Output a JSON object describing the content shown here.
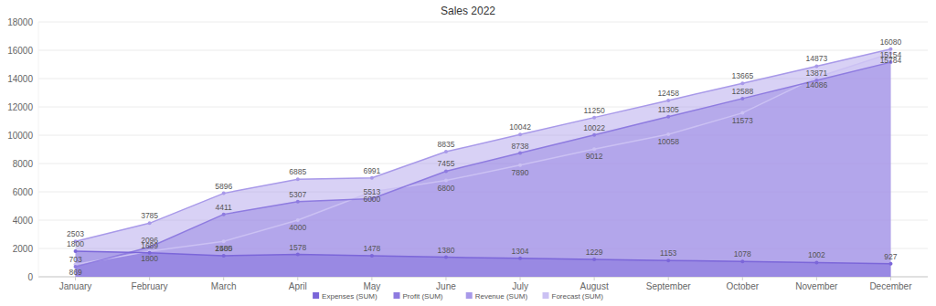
{
  "chart_data": {
    "type": "area",
    "title": "Sales 2022",
    "categories": [
      "January",
      "February",
      "March",
      "April",
      "May",
      "June",
      "July",
      "August",
      "September",
      "October",
      "November",
      "December"
    ],
    "series": [
      {
        "name": "Expenses (SUM)",
        "color": "#7b66d9",
        "values": [
          1800,
          1689,
          1485,
          1578,
          1478,
          1380,
          1304,
          1229,
          1153,
          1078,
          1002,
          927
        ]
      },
      {
        "name": "Profit (SUM)",
        "color": "#8e7be0",
        "values": [
          703,
          2096,
          4411,
          5307,
          5513,
          7455,
          8738,
          10022,
          11305,
          12588,
          13871,
          15154
        ]
      },
      {
        "name": "Revenue (SUM)",
        "color": "#a899e9",
        "values": [
          2503,
          3785,
          5896,
          6885,
          6991,
          8835,
          10042,
          11250,
          12458,
          13665,
          14873,
          16080
        ]
      },
      {
        "name": "Forecast (SUM)",
        "color": "#cbc1f3",
        "values": [
          869,
          1800,
          2500,
          4000,
          6000,
          6800,
          7890,
          9012,
          10058,
          11573,
          14086,
          15784
        ]
      }
    ],
    "ylim": [
      0,
      18000
    ],
    "yticks": [
      0,
      2000,
      4000,
      6000,
      8000,
      10000,
      12000,
      14000,
      16000,
      18000
    ],
    "grid": true,
    "data_labels": true,
    "legend": "bottom"
  }
}
